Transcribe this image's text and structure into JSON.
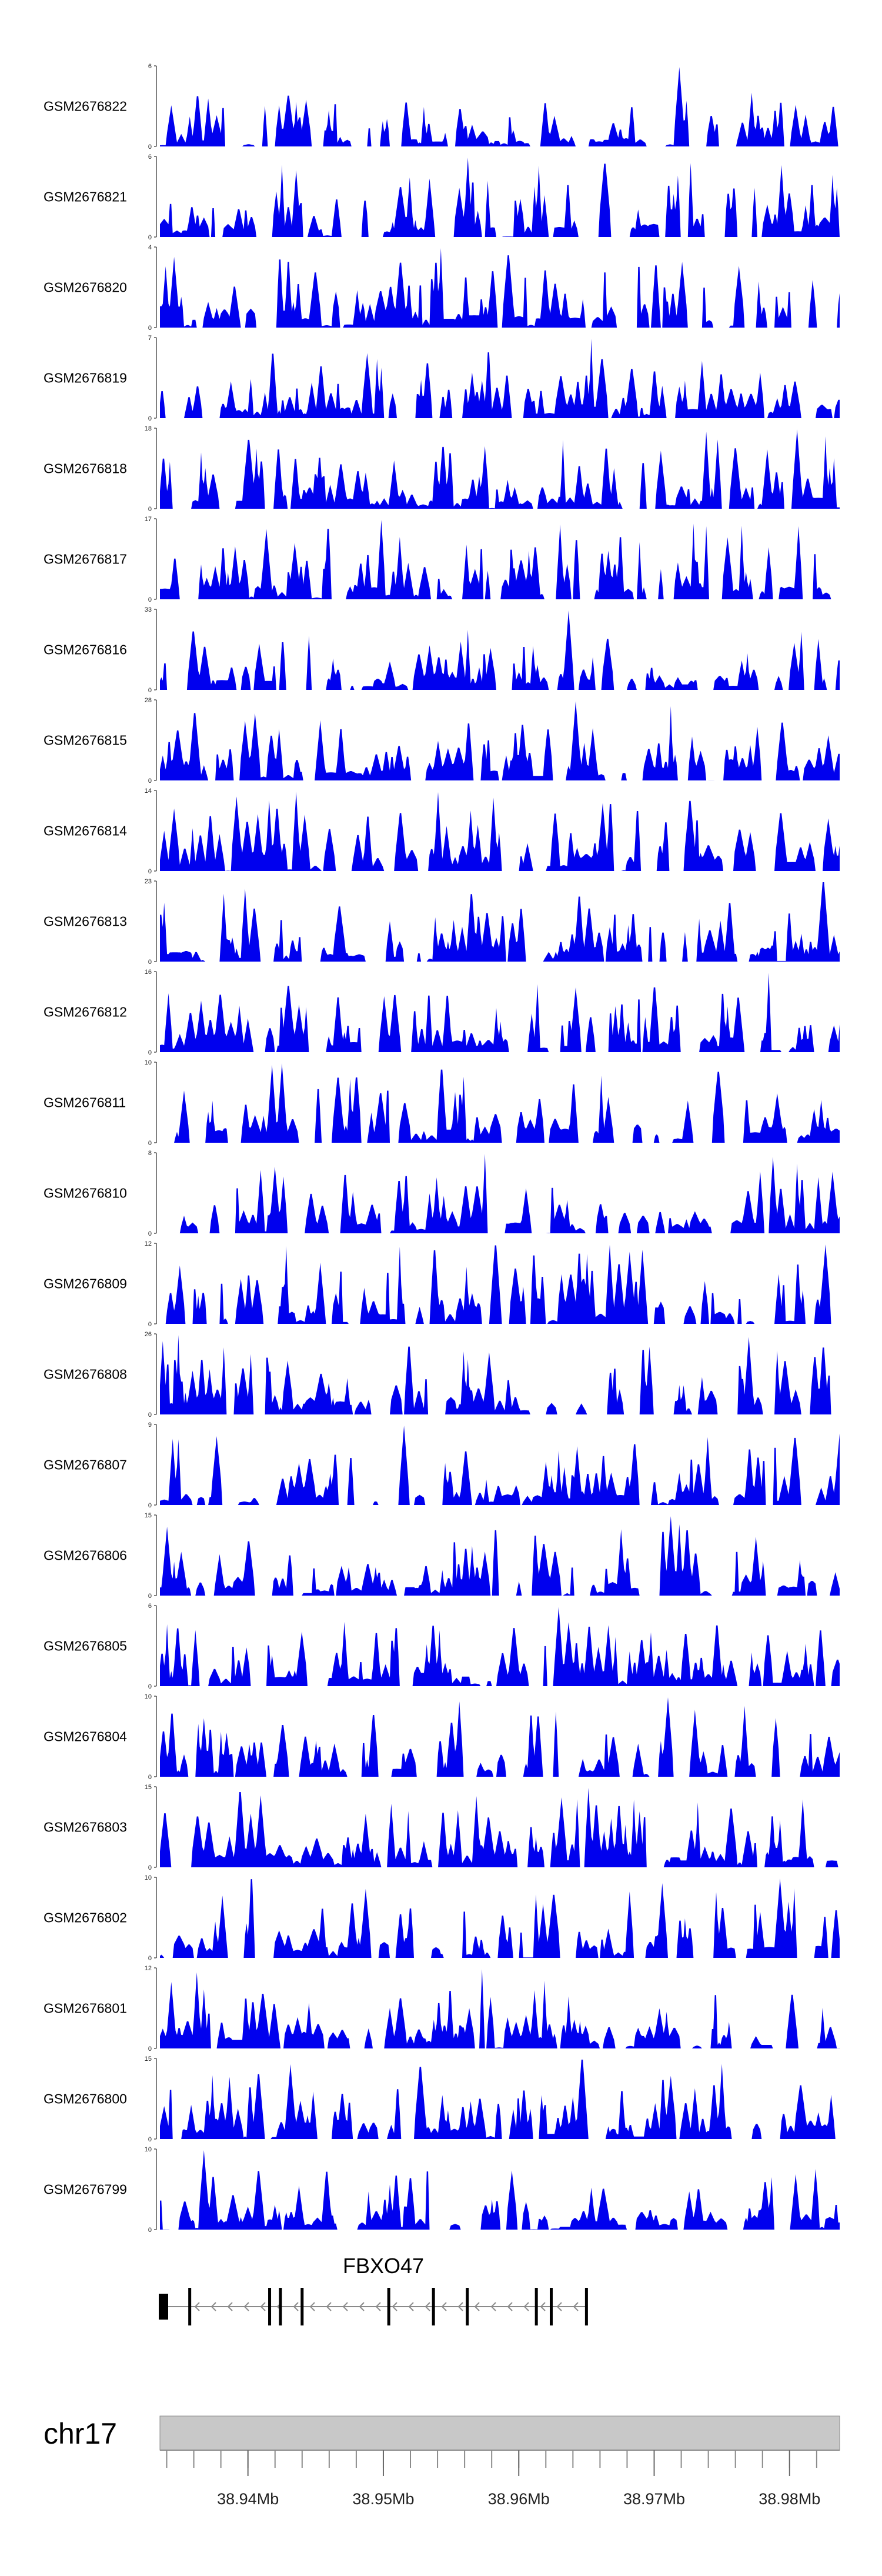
{
  "chart_data": {
    "type": "area",
    "title": "",
    "region": {
      "chromosome": "chr17",
      "start_mb": 38.9335,
      "end_mb": 38.9837
    },
    "series_color": "#0000ee",
    "tracks": [
      {
        "name": "GSM2676822",
        "ymin": 0,
        "ymax": 6
      },
      {
        "name": "GSM2676821",
        "ymin": 0,
        "ymax": 6
      },
      {
        "name": "GSM2676820",
        "ymin": 0,
        "ymax": 4
      },
      {
        "name": "GSM2676819",
        "ymin": 0,
        "ymax": 7
      },
      {
        "name": "GSM2676818",
        "ymin": 0,
        "ymax": 18
      },
      {
        "name": "GSM2676817",
        "ymin": 0,
        "ymax": 17
      },
      {
        "name": "GSM2676816",
        "ymin": 0,
        "ymax": 33
      },
      {
        "name": "GSM2676815",
        "ymin": 0,
        "ymax": 28
      },
      {
        "name": "GSM2676814",
        "ymin": 0,
        "ymax": 14
      },
      {
        "name": "GSM2676813",
        "ymin": 0,
        "ymax": 23
      },
      {
        "name": "GSM2676812",
        "ymin": 0,
        "ymax": 16
      },
      {
        "name": "GSM2676811",
        "ymin": 0,
        "ymax": 10
      },
      {
        "name": "GSM2676810",
        "ymin": 0,
        "ymax": 8
      },
      {
        "name": "GSM2676809",
        "ymin": 0,
        "ymax": 12
      },
      {
        "name": "GSM2676808",
        "ymin": 0,
        "ymax": 26
      },
      {
        "name": "GSM2676807",
        "ymin": 0,
        "ymax": 9
      },
      {
        "name": "GSM2676806",
        "ymin": 0,
        "ymax": 15
      },
      {
        "name": "GSM2676805",
        "ymin": 0,
        "ymax": 6
      },
      {
        "name": "GSM2676804",
        "ymin": 0,
        "ymax": 10
      },
      {
        "name": "GSM2676803",
        "ymin": 0,
        "ymax": 15
      },
      {
        "name": "GSM2676802",
        "ymin": 0,
        "ymax": 10
      },
      {
        "name": "GSM2676801",
        "ymin": 0,
        "ymax": 12
      },
      {
        "name": "GSM2676800",
        "ymin": 0,
        "ymax": 15
      },
      {
        "name": "GSM2676799",
        "ymin": 0,
        "ymax": 10
      }
    ],
    "gene": {
      "name": "FBXO47",
      "strand": "-",
      "start_mb": 38.9335,
      "end_mb": 38.965,
      "exons_mb": [
        38.934,
        38.9357,
        38.9416,
        38.9424,
        38.944,
        38.9504,
        38.9537,
        38.9562,
        38.9613,
        38.9624,
        38.965
      ]
    },
    "axis": {
      "chromosome_label": "chr17",
      "ticks_mb": [
        38.94,
        38.95,
        38.96,
        38.97,
        38.98
      ],
      "tick_labels": [
        "38.94Mb",
        "38.95Mb",
        "38.96Mb",
        "38.97Mb",
        "38.98Mb"
      ],
      "minor_tick_step_mb": 0.002
    }
  }
}
